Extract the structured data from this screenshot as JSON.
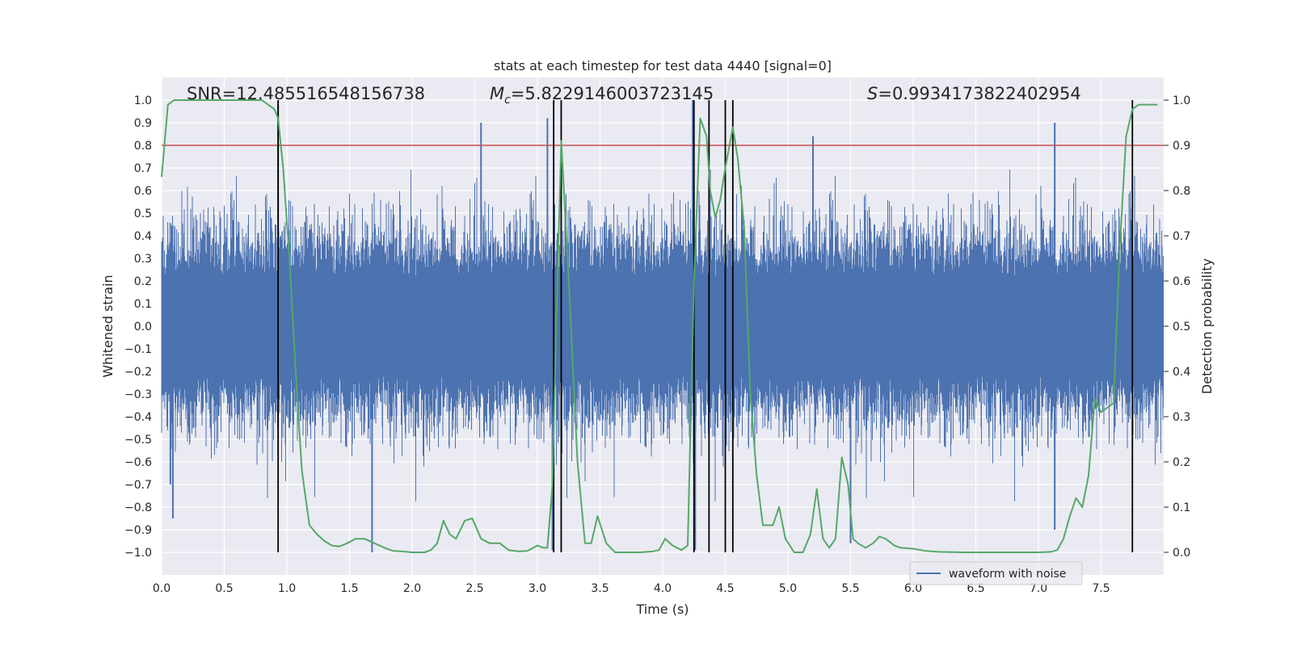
{
  "chart_data": {
    "type": "line",
    "title": "stats at each timestep for test data 4440 [signal=0]",
    "xlabel": "Time (s)",
    "ylabel": "Whitened strain",
    "y2label": "Detection probability",
    "xlim": [
      0.0,
      8.0
    ],
    "ylim": [
      -1.1,
      1.1
    ],
    "y2lim": [
      -0.05,
      1.05
    ],
    "xticks": [
      0.0,
      0.5,
      1.0,
      1.5,
      2.0,
      2.5,
      3.0,
      3.5,
      4.0,
      4.5,
      5.0,
      5.5,
      6.0,
      6.5,
      7.0,
      7.5
    ],
    "xtick_labels": [
      "0.0",
      "0.5",
      "1.0",
      "1.5",
      "2.0",
      "2.5",
      "3.0",
      "3.5",
      "4.0",
      "4.5",
      "5.0",
      "5.5",
      "6.0",
      "6.5",
      "7.0",
      "7.5"
    ],
    "yticks": [
      -1.0,
      -0.9,
      -0.8,
      -0.7,
      -0.6,
      -0.5,
      -0.4,
      -0.3,
      -0.2,
      -0.1,
      0.0,
      0.1,
      0.2,
      0.3,
      0.4,
      0.5,
      0.6,
      0.7,
      0.8,
      0.9,
      1.0
    ],
    "ytick_labels": [
      "−1.0",
      "−0.9",
      "−0.8",
      "−0.7",
      "−0.6",
      "−0.5",
      "−0.4",
      "−0.3",
      "−0.2",
      "−0.1",
      "0.0",
      "0.1",
      "0.2",
      "0.3",
      "0.4",
      "0.5",
      "0.6",
      "0.7",
      "0.8",
      "0.9",
      "1.0"
    ],
    "y2ticks": [
      0.0,
      0.1,
      0.2,
      0.3,
      0.4,
      0.5,
      0.6,
      0.7,
      0.8,
      0.9,
      1.0
    ],
    "y2tick_labels": [
      "0.0",
      "0.1",
      "0.2",
      "0.3",
      "0.4",
      "0.5",
      "0.6",
      "0.7",
      "0.8",
      "0.9",
      "1.0"
    ],
    "annotations": {
      "snr": "SNR=12.485516548156738",
      "mc_symbol": "M",
      "mc_subscript": "c",
      "mc_value": "=5.8229146003723145",
      "s_symbol": "S",
      "s_value": "=0.9934173822402954"
    },
    "threshold": {
      "value": 0.9,
      "axis": "right",
      "color": "#c44e52"
    },
    "vertical_markers": [
      0.93,
      3.13,
      3.19,
      4.25,
      4.37,
      4.5,
      4.56,
      7.75
    ],
    "waveform": {
      "name": "waveform with noise",
      "color": "#4c72b0",
      "x_range": [
        0.0,
        8.0
      ],
      "envelope_quantiles": {
        "p99_abs": 0.62,
        "peak_abs_max": 1.0,
        "spikes": [
          {
            "x": 0.07,
            "y": -0.7
          },
          {
            "x": 0.09,
            "y": -0.85
          },
          {
            "x": 0.93,
            "y": 0.98
          },
          {
            "x": 1.68,
            "y": -1.0
          },
          {
            "x": 2.55,
            "y": 0.9
          },
          {
            "x": 3.08,
            "y": 0.92
          },
          {
            "x": 3.12,
            "y": -0.99
          },
          {
            "x": 4.24,
            "y": 1.0
          },
          {
            "x": 4.26,
            "y": -0.99
          },
          {
            "x": 5.2,
            "y": 0.84
          },
          {
            "x": 5.5,
            "y": -0.96
          },
          {
            "x": 7.13,
            "y": 0.9
          },
          {
            "x": 7.13,
            "y": -0.9
          }
        ]
      }
    },
    "probability": {
      "name": "detection probability",
      "color": "#55a868",
      "x": [
        0.0,
        0.05,
        0.1,
        0.15,
        0.2,
        0.3,
        0.4,
        0.5,
        0.6,
        0.7,
        0.8,
        0.85,
        0.9,
        0.93,
        0.97,
        1.02,
        1.07,
        1.12,
        1.18,
        1.24,
        1.3,
        1.36,
        1.42,
        1.48,
        1.55,
        1.62,
        1.7,
        1.78,
        1.85,
        1.92,
        2.0,
        2.1,
        2.15,
        2.2,
        2.25,
        2.3,
        2.35,
        2.42,
        2.48,
        2.55,
        2.62,
        2.7,
        2.77,
        2.85,
        2.92,
        3.0,
        3.05,
        3.08,
        3.12,
        3.15,
        3.19,
        3.25,
        3.32,
        3.38,
        3.43,
        3.48,
        3.55,
        3.62,
        3.72,
        3.82,
        3.92,
        3.97,
        4.02,
        4.08,
        4.15,
        4.2,
        4.25,
        4.3,
        4.35,
        4.38,
        4.42,
        4.46,
        4.5,
        4.56,
        4.6,
        4.65,
        4.7,
        4.75,
        4.8,
        4.88,
        4.93,
        4.98,
        5.05,
        5.12,
        5.18,
        5.23,
        5.28,
        5.33,
        5.38,
        5.43,
        5.48,
        5.52,
        5.56,
        5.62,
        5.68,
        5.73,
        5.78,
        5.85,
        5.9,
        6.0,
        6.1,
        6.2,
        6.4,
        6.6,
        6.8,
        7.0,
        7.1,
        7.15,
        7.2,
        7.25,
        7.3,
        7.35,
        7.4,
        7.45,
        7.5,
        7.55,
        7.6,
        7.65,
        7.7,
        7.75,
        7.8,
        7.85,
        7.9,
        7.95
      ],
      "y": [
        0.83,
        0.99,
        1.0,
        1.0,
        1.0,
        1.0,
        1.0,
        1.0,
        1.0,
        1.0,
        1.0,
        0.99,
        0.98,
        0.96,
        0.85,
        0.65,
        0.4,
        0.18,
        0.06,
        0.04,
        0.025,
        0.015,
        0.013,
        0.02,
        0.03,
        0.03,
        0.02,
        0.01,
        0.003,
        0.002,
        0.0,
        0.0,
        0.005,
        0.02,
        0.07,
        0.04,
        0.03,
        0.07,
        0.075,
        0.03,
        0.02,
        0.02,
        0.005,
        0.002,
        0.003,
        0.015,
        0.01,
        0.01,
        0.15,
        0.5,
        0.91,
        0.6,
        0.2,
        0.02,
        0.02,
        0.08,
        0.02,
        0.0,
        0.0,
        0.0,
        0.002,
        0.005,
        0.03,
        0.015,
        0.005,
        0.015,
        0.6,
        0.96,
        0.92,
        0.8,
        0.74,
        0.78,
        0.85,
        0.94,
        0.87,
        0.72,
        0.35,
        0.17,
        0.06,
        0.06,
        0.1,
        0.03,
        0.0,
        0.0,
        0.04,
        0.14,
        0.03,
        0.01,
        0.03,
        0.21,
        0.15,
        0.03,
        0.02,
        0.01,
        0.02,
        0.035,
        0.03,
        0.015,
        0.01,
        0.008,
        0.003,
        0.001,
        0.0,
        0.0,
        0.0,
        0.0,
        0.001,
        0.005,
        0.03,
        0.08,
        0.12,
        0.1,
        0.17,
        0.34,
        0.31,
        0.32,
        0.33,
        0.68,
        0.92,
        0.98,
        0.99,
        0.99,
        0.99,
        0.99
      ]
    },
    "legend": {
      "entries": [
        "waveform with noise"
      ],
      "location": "lower-right"
    },
    "grid": true
  }
}
